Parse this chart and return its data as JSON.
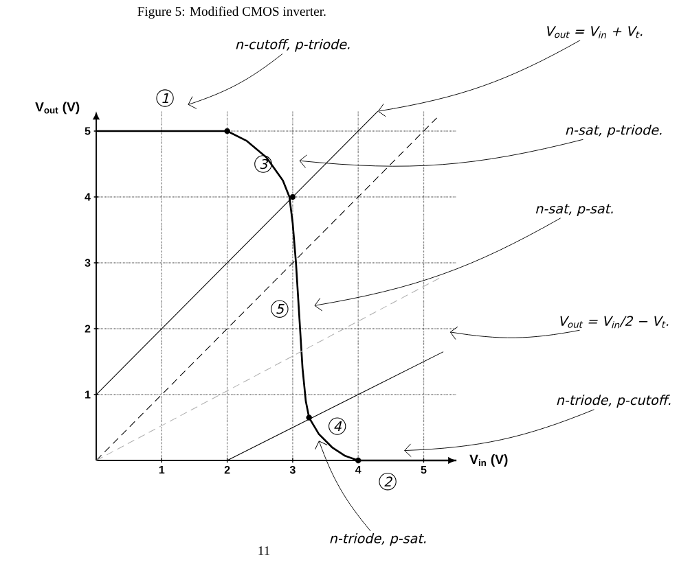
{
  "chart_data": {
    "type": "line",
    "title": "Figure 5: Modified CMOS inverter.",
    "xlabel": "V$_{in}$ (V)",
    "ylabel": "V$_{out}$ (V)",
    "xlim": [
      0,
      5.5
    ],
    "ylim": [
      0,
      5.3
    ],
    "xticks": [
      1,
      2,
      3,
      4,
      5
    ],
    "yticks": [
      1,
      2,
      3,
      4,
      5
    ],
    "grid": true,
    "marker": "none",
    "series": [
      {
        "color": "#000000",
        "line_style": "solid",
        "x": [
          0,
          1,
          2,
          2.3,
          2.6,
          2.85,
          2.95,
          3.0,
          3.05,
          3.1,
          3.15,
          3.2,
          3.25,
          3.4,
          3.6,
          3.8,
          4,
          4.5,
          5,
          5.5
        ],
        "values": [
          5,
          5,
          5,
          4.85,
          4.6,
          4.25,
          4,
          3.6,
          3,
          2.2,
          1.4,
          0.9,
          0.65,
          0.4,
          0.2,
          0.07,
          0,
          0,
          0,
          0
        ]
      },
      {
        "color": "#000000",
        "line_style": "solid",
        "x": [
          0,
          4.3
        ],
        "values": [
          1,
          5.3
        ]
      },
      {
        "color": "#000000",
        "line_style": "dashed",
        "x": [
          0,
          5.2
        ],
        "values": [
          0,
          5.2
        ]
      },
      {
        "color": "#b0b0b0",
        "line_style": "dashed",
        "x": [
          0,
          5.3
        ],
        "values": [
          0,
          2.8
        ]
      },
      {
        "color": "#000000",
        "line_style": "solid",
        "x": [
          2,
          5.3
        ],
        "values": [
          0,
          1.65
        ]
      },
      {
        "type": "scatter",
        "marker": "circle",
        "color": "#000000",
        "x": [
          2,
          3,
          3.25,
          4
        ],
        "values": [
          5,
          4,
          0.65,
          0
        ]
      }
    ],
    "annotations": [
      "n-cutoff, p-triode.",
      "V$_{out}$ = V$_{in}$ + V$_{t}$.",
      "n-sat, p-triode.",
      "n-sat, p-sat.",
      "V$_{out}$ = V$_{in}$/2 − V$_{t}$.",
      "n-triode, p-cutoff.",
      "n-triode, p-sat.",
      "1",
      "2",
      "3",
      "4",
      "5",
      "11"
    ]
  }
}
